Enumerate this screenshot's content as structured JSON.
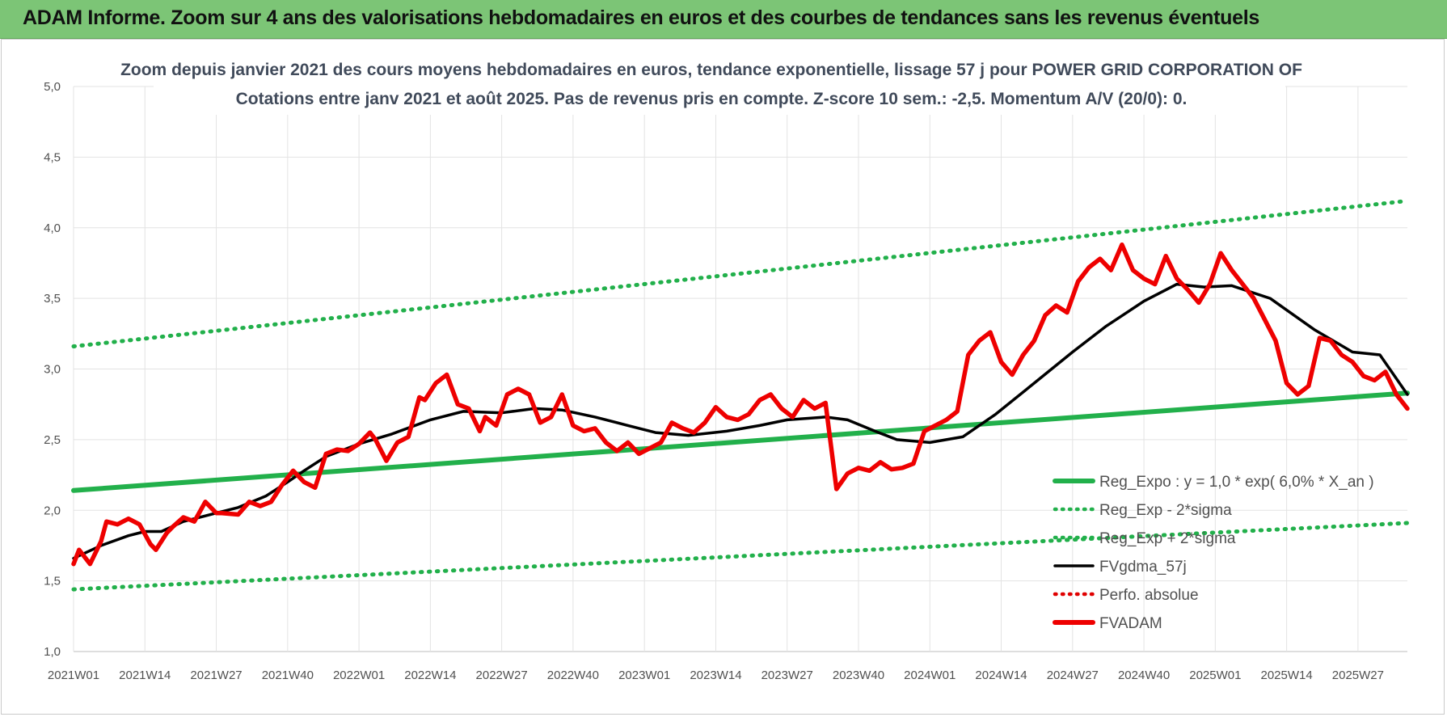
{
  "banner": {
    "title": "ADAM Informe. Zoom sur 4 ans des valorisations hebdomadaires en euros et des courbes de tendances sans les revenus éventuels"
  },
  "chart_data": {
    "type": "line",
    "title": "Zoom depuis janvier 2021 des cours moyens hebdomadaires en euros, tendance exponentielle, lissage 57 j pour POWER GRID CORPORATION OF",
    "subtitle": "Cotations entre janv 2021 et août 2025.  Pas de revenus pris en compte. Z-score 10 sem.: -2,5. Momentum A/V (20/0): 0.",
    "xlabel": "",
    "ylabel": "",
    "ylim": [
      1.0,
      5.0
    ],
    "y_ticks": [
      "1,0",
      "1,5",
      "2,0",
      "2,5",
      "3,0",
      "3,5",
      "4,0",
      "4,5",
      "5,0"
    ],
    "x_ticks": [
      "2021W01",
      "2021W14",
      "2021W27",
      "2021W40",
      "2022W01",
      "2022W14",
      "2022W27",
      "2022W40",
      "2023W01",
      "2023W14",
      "2023W27",
      "2023W40",
      "2024W01",
      "2024W14",
      "2024W27",
      "2024W40",
      "2025W01",
      "2025W14",
      "2025W27"
    ],
    "grid": true,
    "legend_position": "bottom-right",
    "x_range_weeks": [
      0,
      243
    ],
    "series": [
      {
        "name": "Reg_Expo : y = 1,0 * exp( 6,0% *  X_an )",
        "style": "solid",
        "color": "#22b04b",
        "x": [
          0,
          243
        ],
        "values": [
          2.14,
          2.83
        ]
      },
      {
        "name": "Reg_Exp - 2*sigma",
        "style": "dotted",
        "color": "#22b04b",
        "x": [
          0,
          243
        ],
        "values": [
          1.44,
          1.91
        ]
      },
      {
        "name": "Reg_Exp + 2*sigma",
        "style": "dotted",
        "color": "#22b04b",
        "x": [
          0,
          243
        ],
        "values": [
          3.16,
          4.19
        ]
      },
      {
        "name": "FVgdma_57j",
        "style": "solid",
        "color": "#000000",
        "x": [
          0,
          5,
          10,
          13,
          16,
          20,
          26,
          30,
          35,
          39,
          42,
          46,
          52,
          58,
          65,
          71,
          78,
          84,
          89,
          95,
          101,
          106,
          112,
          119,
          125,
          130,
          137,
          141,
          146,
          150,
          156,
          162,
          168,
          175,
          182,
          188,
          195,
          201,
          206,
          211,
          218,
          226,
          233,
          238,
          243
        ],
        "values": [
          1.66,
          1.75,
          1.82,
          1.85,
          1.85,
          1.92,
          1.98,
          2.02,
          2.1,
          2.2,
          2.28,
          2.38,
          2.47,
          2.54,
          2.64,
          2.7,
          2.69,
          2.72,
          2.71,
          2.66,
          2.6,
          2.55,
          2.53,
          2.56,
          2.6,
          2.64,
          2.66,
          2.64,
          2.56,
          2.5,
          2.48,
          2.52,
          2.68,
          2.9,
          3.12,
          3.3,
          3.48,
          3.6,
          3.58,
          3.59,
          3.5,
          3.28,
          3.12,
          3.1,
          2.82
        ]
      },
      {
        "name": "Perfo. absolue",
        "style": "dotted",
        "color": "#e00000",
        "x": [],
        "values": []
      },
      {
        "name": "FVADAM",
        "style": "solid",
        "color": "#ee0000",
        "x": [
          0,
          1,
          3,
          5,
          6,
          8,
          10,
          12,
          14,
          15,
          17,
          18,
          20,
          22,
          24,
          26,
          27,
          30,
          32,
          34,
          36,
          38,
          40,
          42,
          44,
          46,
          48,
          50,
          52,
          54,
          55,
          57,
          59,
          61,
          63,
          64,
          66,
          68,
          70,
          72,
          74,
          75,
          77,
          79,
          81,
          83,
          85,
          87,
          89,
          91,
          93,
          95,
          97,
          99,
          101,
          103,
          105,
          107,
          109,
          111,
          113,
          115,
          117,
          119,
          121,
          123,
          125,
          127,
          129,
          131,
          133,
          135,
          137,
          139,
          141,
          143,
          145,
          147,
          149,
          151,
          153,
          155,
          157,
          159,
          161,
          163,
          165,
          167,
          169,
          171,
          173,
          175,
          177,
          179,
          181,
          183,
          185,
          187,
          189,
          191,
          193,
          195,
          197,
          199,
          201,
          203,
          205,
          207,
          209,
          211,
          213,
          215,
          217,
          219,
          221,
          223,
          225,
          227,
          229,
          231,
          233,
          235,
          237,
          239,
          241,
          243
        ],
        "values": [
          1.62,
          1.72,
          1.62,
          1.78,
          1.92,
          1.9,
          1.94,
          1.9,
          1.76,
          1.72,
          1.84,
          1.88,
          1.95,
          1.92,
          2.06,
          1.98,
          1.98,
          1.97,
          2.06,
          2.03,
          2.06,
          2.18,
          2.28,
          2.2,
          2.16,
          2.4,
          2.43,
          2.42,
          2.47,
          2.55,
          2.5,
          2.35,
          2.48,
          2.52,
          2.8,
          2.78,
          2.9,
          2.96,
          2.75,
          2.72,
          2.56,
          2.66,
          2.6,
          2.82,
          2.86,
          2.82,
          2.62,
          2.66,
          2.82,
          2.6,
          2.56,
          2.58,
          2.48,
          2.42,
          2.48,
          2.4,
          2.44,
          2.48,
          2.62,
          2.58,
          2.55,
          2.62,
          2.73,
          2.66,
          2.64,
          2.68,
          2.78,
          2.82,
          2.72,
          2.66,
          2.78,
          2.72,
          2.76,
          2.15,
          2.26,
          2.3,
          2.28,
          2.34,
          2.29,
          2.3,
          2.33,
          2.56,
          2.6,
          2.64,
          2.7,
          3.1,
          3.2,
          3.26,
          3.05,
          2.96,
          3.1,
          3.2,
          3.38,
          3.45,
          3.4,
          3.62,
          3.72,
          3.78,
          3.7,
          3.88,
          3.7,
          3.64,
          3.6,
          3.8,
          3.64,
          3.56,
          3.47,
          3.6,
          3.82,
          3.7,
          3.6,
          3.5,
          3.35,
          3.2,
          2.9,
          2.82,
          2.88,
          3.22,
          3.2,
          3.1,
          3.05,
          2.95,
          2.92,
          2.98,
          2.82,
          2.72
        ]
      }
    ]
  }
}
